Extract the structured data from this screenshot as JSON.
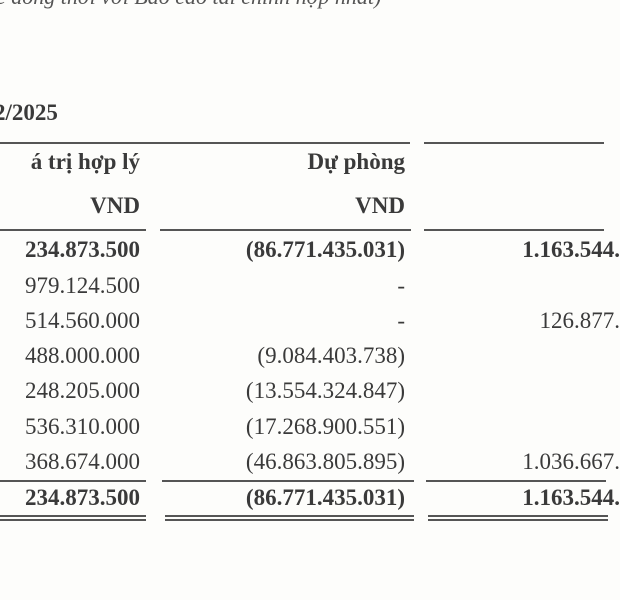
{
  "note": "c đồng thời với Báo cáo tài chính hợp nhất)",
  "period_title": "2/2025",
  "headers": {
    "col1": "á trị hợp lý",
    "col2": "Dự phòng",
    "col1_unit": "VND",
    "col2_unit": "VND"
  },
  "rows": [
    {
      "col1": "234.873.500",
      "col2": "(86.771.435.031)",
      "col3": "1.163.544.",
      "bold": true
    },
    {
      "col1": "979.124.500",
      "col2": "-",
      "col3": ""
    },
    {
      "col1": "514.560.000",
      "col2": "-",
      "col3": "126.877."
    },
    {
      "col1": "488.000.000",
      "col2": "(9.084.403.738)",
      "col3": ""
    },
    {
      "col1": "248.205.000",
      "col2": "(13.554.324.847)",
      "col3": ""
    },
    {
      "col1": "536.310.000",
      "col2": "(17.268.900.551)",
      "col3": ""
    },
    {
      "col1": "368.674.000",
      "col2": "(46.863.805.895)",
      "col3": "1.036.667."
    }
  ],
  "total": {
    "col1": "234.873.500",
    "col2": "(86.771.435.031)",
    "col3": "1.163.544."
  }
}
